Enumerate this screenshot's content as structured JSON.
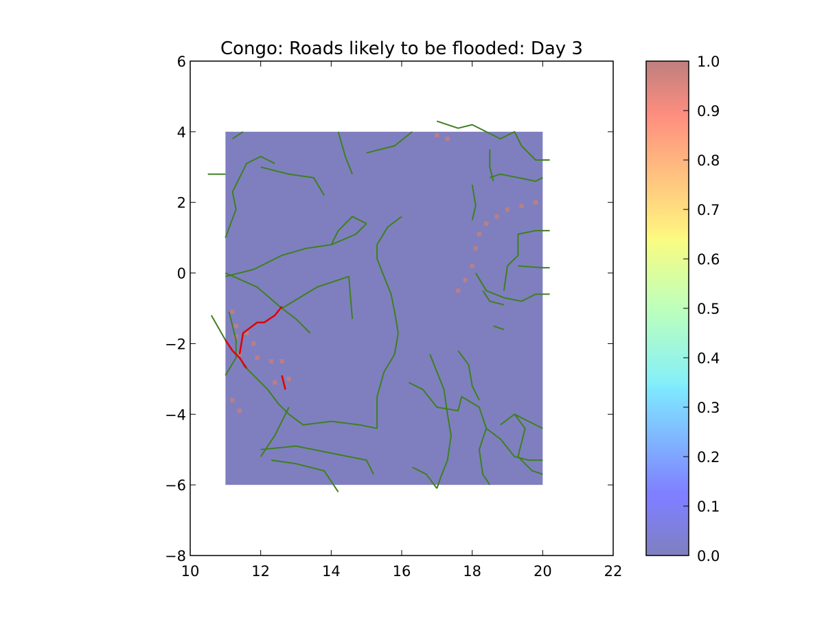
{
  "chart_data": {
    "type": "heatmap",
    "title": "Congo: Roads likely to be flooded: Day 3",
    "xlabel": "",
    "ylabel": "",
    "xlim": [
      10,
      22
    ],
    "ylim": [
      -8,
      6
    ],
    "x_ticks": [
      10,
      12,
      14,
      16,
      18,
      20,
      22
    ],
    "y_ticks": [
      6,
      4,
      2,
      0,
      -2,
      -4,
      -6,
      -8
    ],
    "x_tick_labels": [
      "10",
      "12",
      "14",
      "16",
      "18",
      "20",
      "22"
    ],
    "y_tick_labels": [
      "6",
      "4",
      "2",
      "0",
      "−2",
      "−4",
      "−6",
      "−8"
    ],
    "grid": false,
    "colormap": "jet",
    "colormap_alpha": 0.5,
    "colorbar": {
      "range": [
        0.0,
        1.0
      ],
      "ticks": [
        0.0,
        0.1,
        0.2,
        0.3,
        0.4,
        0.5,
        0.6,
        0.7,
        0.8,
        0.9,
        1.0
      ],
      "tick_labels": [
        "0.0",
        "0.1",
        "0.2",
        "0.3",
        "0.4",
        "0.5",
        "0.6",
        "0.7",
        "0.8",
        "0.9",
        "1.0"
      ]
    },
    "raster": {
      "extent_x": [
        11,
        20
      ],
      "extent_y": [
        -6,
        4
      ],
      "background_value": 0.0,
      "flood_probability_cells": [
        {
          "x": 18.0,
          "y": 0.2,
          "value": 1.0
        },
        {
          "x": 18.1,
          "y": 0.7,
          "value": 1.0
        },
        {
          "x": 18.2,
          "y": 1.1,
          "value": 1.0
        },
        {
          "x": 18.4,
          "y": 1.4,
          "value": 1.0
        },
        {
          "x": 18.7,
          "y": 1.6,
          "value": 1.0
        },
        {
          "x": 19.0,
          "y": 1.8,
          "value": 1.0
        },
        {
          "x": 19.4,
          "y": 1.9,
          "value": 1.0
        },
        {
          "x": 19.8,
          "y": 2.0,
          "value": 1.0
        },
        {
          "x": 17.6,
          "y": -0.5,
          "value": 1.0
        },
        {
          "x": 17.8,
          "y": -0.2,
          "value": 1.0
        },
        {
          "x": 17.0,
          "y": 3.9,
          "value": 1.0
        },
        {
          "x": 17.3,
          "y": 3.8,
          "value": 1.0
        },
        {
          "x": 11.2,
          "y": -1.1,
          "value": 1.0
        },
        {
          "x": 11.3,
          "y": -1.5,
          "value": 1.0
        },
        {
          "x": 11.3,
          "y": -1.8,
          "value": 1.0
        },
        {
          "x": 11.6,
          "y": -1.7,
          "value": 1.0
        },
        {
          "x": 11.8,
          "y": -2.0,
          "value": 1.0
        },
        {
          "x": 11.4,
          "y": -2.3,
          "value": 1.0
        },
        {
          "x": 11.9,
          "y": -2.4,
          "value": 1.0
        },
        {
          "x": 12.3,
          "y": -2.5,
          "value": 1.0
        },
        {
          "x": 12.6,
          "y": -2.5,
          "value": 1.0
        },
        {
          "x": 12.4,
          "y": -3.1,
          "value": 1.0
        },
        {
          "x": 12.8,
          "y": -3.0,
          "value": 1.0
        },
        {
          "x": 11.2,
          "y": -3.6,
          "value": 1.0
        },
        {
          "x": 11.4,
          "y": -3.9,
          "value": 1.0
        }
      ]
    },
    "flooded_roads": [
      [
        [
          11.0,
          -1.9
        ],
        [
          11.2,
          -2.2
        ],
        [
          11.4,
          -2.4
        ],
        [
          11.6,
          -2.7
        ]
      ],
      [
        [
          11.4,
          -2.3
        ],
        [
          11.5,
          -1.7
        ],
        [
          11.9,
          -1.4
        ],
        [
          12.1,
          -1.4
        ],
        [
          12.4,
          -1.2
        ],
        [
          12.6,
          -0.95
        ]
      ],
      [
        [
          12.6,
          -2.9
        ],
        [
          12.7,
          -3.3
        ]
      ]
    ],
    "roads": [
      [
        [
          15.3,
          -4.4
        ],
        [
          15.3,
          -3.5
        ],
        [
          15.5,
          -2.8
        ],
        [
          15.8,
          -2.3
        ],
        [
          15.9,
          -1.7
        ],
        [
          15.8,
          -1.1
        ],
        [
          15.7,
          -0.6
        ],
        [
          15.5,
          -0.1
        ],
        [
          15.3,
          0.4
        ],
        [
          15.3,
          0.8
        ],
        [
          15.6,
          1.3
        ],
        [
          16.0,
          1.6
        ]
      ],
      [
        [
          11.0,
          -0.1
        ],
        [
          11.8,
          0.1
        ],
        [
          12.6,
          0.5
        ],
        [
          13.3,
          0.7
        ],
        [
          14.0,
          0.8
        ],
        [
          14.7,
          1.1
        ],
        [
          15.0,
          1.4
        ]
      ],
      [
        [
          11.0,
          0.0
        ],
        [
          11.9,
          -0.4
        ],
        [
          12.6,
          -1.0
        ],
        [
          13.0,
          -1.3
        ],
        [
          13.4,
          -1.7
        ]
      ],
      [
        [
          12.6,
          -1.0
        ],
        [
          13.6,
          -0.4
        ],
        [
          14.5,
          -0.1
        ],
        [
          14.6,
          -1.3
        ]
      ],
      [
        [
          11.1,
          -1.1
        ],
        [
          11.3,
          -1.9
        ],
        [
          11.3,
          -2.4
        ],
        [
          11.0,
          -2.9
        ]
      ],
      [
        [
          10.6,
          -1.2
        ],
        [
          11.0,
          -1.9
        ]
      ],
      [
        [
          11.5,
          -2.6
        ],
        [
          12.2,
          -3.3
        ],
        [
          12.5,
          -3.7
        ],
        [
          12.8,
          -4.0
        ],
        [
          13.2,
          -4.3
        ],
        [
          14.0,
          -4.2
        ],
        [
          14.8,
          -4.3
        ],
        [
          15.3,
          -4.4
        ]
      ],
      [
        [
          12.0,
          -5.2
        ],
        [
          12.4,
          -4.6
        ],
        [
          12.6,
          -4.2
        ],
        [
          12.8,
          -3.8
        ]
      ],
      [
        [
          12.0,
          -5.0
        ],
        [
          13.0,
          -4.9
        ],
        [
          14.0,
          -5.1
        ],
        [
          15.0,
          -5.3
        ],
        [
          15.2,
          -5.7
        ]
      ],
      [
        [
          12.3,
          -5.3
        ],
        [
          13.0,
          -5.4
        ],
        [
          13.8,
          -5.6
        ],
        [
          14.2,
          -6.2
        ]
      ],
      [
        [
          11.0,
          1.0
        ],
        [
          11.3,
          1.8
        ],
        [
          11.2,
          2.3
        ],
        [
          11.6,
          3.1
        ],
        [
          12.0,
          3.3
        ],
        [
          12.4,
          3.1
        ]
      ],
      [
        [
          12.0,
          3.0
        ],
        [
          12.8,
          2.8
        ],
        [
          13.5,
          2.7
        ],
        [
          13.8,
          2.2
        ]
      ],
      [
        [
          10.5,
          2.8
        ],
        [
          11.0,
          2.8
        ]
      ],
      [
        [
          11.5,
          4.0
        ],
        [
          11.2,
          3.8
        ]
      ],
      [
        [
          14.2,
          4.0
        ],
        [
          14.4,
          3.3
        ],
        [
          14.6,
          2.8
        ]
      ],
      [
        [
          15.0,
          3.4
        ],
        [
          15.8,
          3.6
        ],
        [
          16.3,
          4.0
        ]
      ],
      [
        [
          14.0,
          0.8
        ],
        [
          14.2,
          1.2
        ],
        [
          14.6,
          1.6
        ],
        [
          15.0,
          1.4
        ]
      ],
      [
        [
          16.8,
          -2.3
        ],
        [
          17.0,
          -2.8
        ],
        [
          17.2,
          -3.3
        ],
        [
          17.3,
          -4.0
        ],
        [
          17.4,
          -4.6
        ],
        [
          17.3,
          -5.3
        ],
        [
          17.1,
          -5.8
        ],
        [
          17.0,
          -6.1
        ]
      ],
      [
        [
          16.2,
          -3.1
        ],
        [
          16.6,
          -3.3
        ],
        [
          17.0,
          -3.8
        ],
        [
          17.6,
          -3.9
        ],
        [
          17.7,
          -3.5
        ],
        [
          18.2,
          -3.8
        ],
        [
          18.4,
          -4.4
        ]
      ],
      [
        [
          16.3,
          -5.5
        ],
        [
          16.7,
          -5.7
        ],
        [
          17.0,
          -6.1
        ]
      ],
      [
        [
          18.4,
          -4.4
        ],
        [
          18.2,
          -5.0
        ],
        [
          18.3,
          -5.7
        ],
        [
          18.5,
          -6.0
        ]
      ],
      [
        [
          19.2,
          -4.0
        ],
        [
          19.5,
          -4.4
        ],
        [
          19.3,
          -5.2
        ],
        [
          19.7,
          -5.6
        ],
        [
          20.0,
          -5.7
        ]
      ],
      [
        [
          18.8,
          -4.3
        ],
        [
          19.2,
          -4.0
        ],
        [
          19.6,
          -4.2
        ],
        [
          20.0,
          -4.4
        ]
      ],
      [
        [
          18.4,
          -4.4
        ],
        [
          18.8,
          -4.7
        ],
        [
          19.2,
          -5.2
        ],
        [
          19.6,
          -5.3
        ],
        [
          20.0,
          -5.3
        ]
      ],
      [
        [
          18.1,
          0.0
        ],
        [
          18.4,
          -0.5
        ],
        [
          18.9,
          -0.7
        ],
        [
          19.4,
          -0.8
        ],
        [
          19.8,
          -0.6
        ],
        [
          20.2,
          -0.6
        ]
      ],
      [
        [
          18.9,
          -0.5
        ],
        [
          19.0,
          0.2
        ],
        [
          19.3,
          0.5
        ],
        [
          19.3,
          1.1
        ],
        [
          19.8,
          1.2
        ],
        [
          20.2,
          1.2
        ]
      ],
      [
        [
          19.3,
          0.2
        ],
        [
          20.0,
          0.15
        ],
        [
          20.2,
          0.15
        ]
      ],
      [
        [
          17.0,
          4.3
        ],
        [
          17.6,
          4.1
        ],
        [
          18.0,
          4.2
        ],
        [
          18.4,
          4.0
        ],
        [
          18.8,
          3.8
        ],
        [
          19.2,
          4.0
        ],
        [
          19.4,
          3.6
        ],
        [
          19.8,
          3.2
        ],
        [
          20.2,
          3.2
        ]
      ],
      [
        [
          18.5,
          3.5
        ],
        [
          18.5,
          3.0
        ],
        [
          18.6,
          2.6
        ]
      ],
      [
        [
          18.5,
          2.7
        ],
        [
          18.8,
          2.8
        ],
        [
          19.3,
          2.7
        ],
        [
          19.8,
          2.6
        ],
        [
          20.0,
          2.7
        ]
      ],
      [
        [
          18.0,
          2.5
        ],
        [
          18.1,
          1.9
        ],
        [
          18.0,
          1.5
        ]
      ],
      [
        [
          18.3,
          -0.5
        ],
        [
          18.5,
          -0.8
        ],
        [
          18.9,
          -0.9
        ]
      ],
      [
        [
          17.6,
          -2.2
        ],
        [
          17.9,
          -2.6
        ],
        [
          18.0,
          -3.2
        ],
        [
          18.2,
          -3.6
        ]
      ],
      [
        [
          18.6,
          -1.5
        ],
        [
          18.9,
          -1.6
        ]
      ]
    ]
  }
}
